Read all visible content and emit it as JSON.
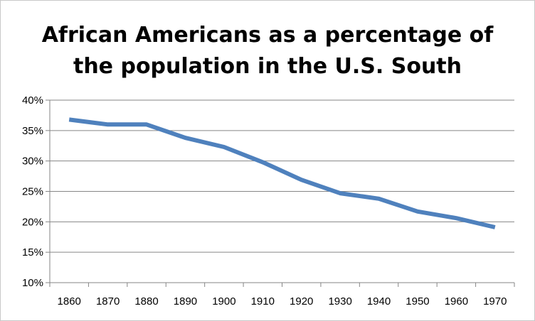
{
  "chart_data": {
    "type": "line",
    "title_lines": [
      "African Americans as a percentage of",
      "the population in the U.S. South"
    ],
    "xlabel": "",
    "ylabel": "",
    "x": [
      "1860",
      "1870",
      "1880",
      "1890",
      "1900",
      "1910",
      "1920",
      "1930",
      "1940",
      "1950",
      "1960",
      "1970"
    ],
    "series": [
      {
        "values": [
          36.8,
          36.0,
          36.0,
          33.8,
          32.3,
          29.8,
          26.9,
          24.7,
          23.8,
          21.7,
          20.6,
          19.1
        ]
      }
    ],
    "y_ticks": [
      "40%",
      "35%",
      "30%",
      "25%",
      "20%",
      "15%",
      "10%"
    ],
    "y_tick_values": [
      40,
      35,
      30,
      25,
      20,
      15,
      10
    ],
    "ylim": [
      10,
      40
    ],
    "grid": "horizontal",
    "line_color": "#4f81bd",
    "grid_color": "#868686",
    "legend": "none"
  }
}
